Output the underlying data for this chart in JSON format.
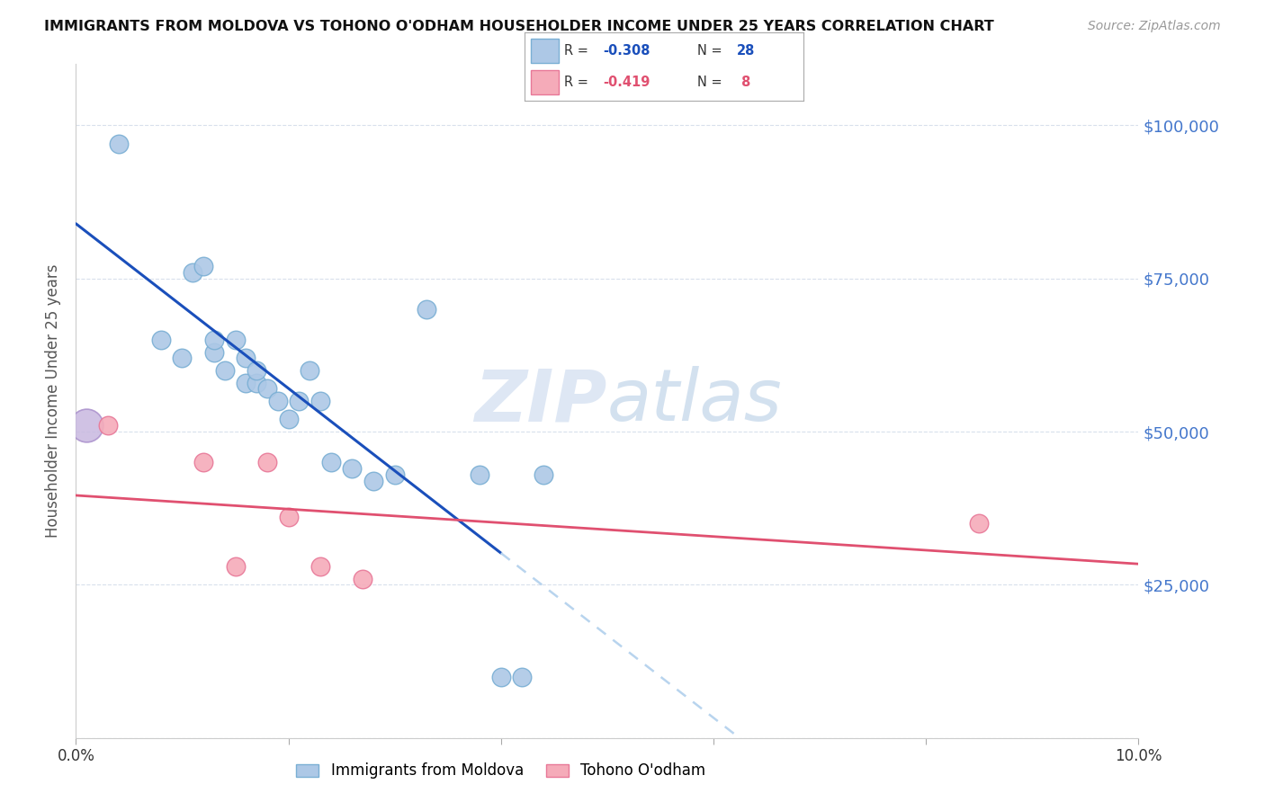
{
  "title": "IMMIGRANTS FROM MOLDOVA VS TOHONO O'ODHAM HOUSEHOLDER INCOME UNDER 25 YEARS CORRELATION CHART",
  "source": "Source: ZipAtlas.com",
  "ylabel": "Householder Income Under 25 years",
  "xlim": [
    0.0,
    0.1
  ],
  "ylim": [
    0,
    110000
  ],
  "yticks": [
    0,
    25000,
    50000,
    75000,
    100000
  ],
  "xticks": [
    0.0,
    0.02,
    0.04,
    0.06,
    0.08,
    0.1
  ],
  "moldova_color": "#adc8e6",
  "tohono_color": "#f5abb9",
  "moldova_edge": "#7aafd4",
  "tohono_edge": "#e87898",
  "trendline_moldova_color": "#1a4fbb",
  "trendline_tohono_color": "#e05070",
  "trendline_ext_color": "#b8d4ee",
  "watermark_zip": "ZIP",
  "watermark_atlas": "atlas",
  "moldova_x": [
    0.004,
    0.008,
    0.01,
    0.011,
    0.012,
    0.013,
    0.013,
    0.014,
    0.015,
    0.016,
    0.016,
    0.017,
    0.017,
    0.018,
    0.019,
    0.02,
    0.021,
    0.022,
    0.023,
    0.024,
    0.026,
    0.028,
    0.03,
    0.033,
    0.038,
    0.04,
    0.042,
    0.044
  ],
  "moldova_y": [
    97000,
    65000,
    62000,
    76000,
    77000,
    63000,
    65000,
    60000,
    65000,
    58000,
    62000,
    58000,
    60000,
    57000,
    55000,
    52000,
    55000,
    60000,
    55000,
    45000,
    44000,
    42000,
    43000,
    70000,
    43000,
    10000,
    10000,
    43000
  ],
  "tohono_x": [
    0.003,
    0.012,
    0.015,
    0.018,
    0.02,
    0.023,
    0.027,
    0.085
  ],
  "tohono_y": [
    51000,
    45000,
    28000,
    45000,
    36000,
    28000,
    26000,
    35000
  ],
  "bg_color": "#ffffff",
  "grid_color": "#d8e0ec",
  "title_color": "#111111",
  "axis_label_color": "#555555",
  "ytick_right_color": "#4477cc",
  "legend_r1": "-0.308",
  "legend_n1": "28",
  "legend_r2": "-0.419",
  "legend_n2": "8"
}
